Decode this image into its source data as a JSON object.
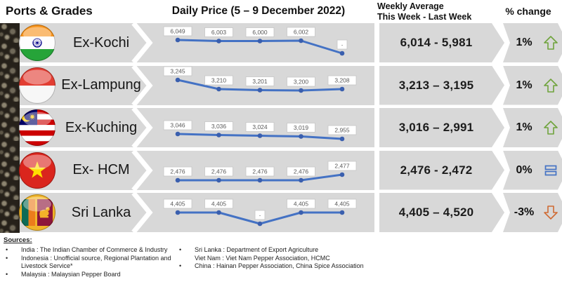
{
  "header": {
    "ports_grades": "Ports & Grades",
    "daily_price_title": "Daily Price (5 – 9 December 2022)",
    "weekly_avg_line1": "Weekly Average",
    "weekly_avg_line2": "This Week - Last Week",
    "pct_change": "% change"
  },
  "colors": {
    "band_gray": "#d8d8d8",
    "line_blue": "#4472c4",
    "trend_up_green": "#6fa33c",
    "trend_down_orange": "#cf6a33",
    "trend_equal_blue": "#4472c4"
  },
  "chart_data": [
    {
      "type": "line",
      "port": "Ex-Kochi",
      "flag": "india",
      "flag_name": "india-flag-icon",
      "values": [
        6049,
        6003,
        6000,
        6002,
        null
      ],
      "point_labels": [
        "6,049",
        "6,003",
        "6,000",
        "6,002",
        "-"
      ],
      "weekly_average": "6,014 - 5,981",
      "pct_change": "1%",
      "trend": "up",
      "plot_ys": [
        24,
        25.5,
        25.5,
        25,
        43
      ]
    },
    {
      "type": "line",
      "port": "Ex-Lampung",
      "flag": "indonesia",
      "flag_name": "indonesia-flag-icon",
      "values": [
        3245,
        3210,
        3201,
        3200,
        3208
      ],
      "point_labels": [
        "3,245",
        "3,210",
        "3,201",
        "3,200",
        "3,208"
      ],
      "weekly_average": "3,213 – 3,195",
      "pct_change": "1%",
      "trend": "up",
      "plot_ys": [
        20,
        33,
        34.5,
        35,
        33
      ]
    },
    {
      "type": "line",
      "port": "Ex-Kuching",
      "flag": "malaysia",
      "flag_name": "malaysia-flag-icon",
      "values": [
        3046,
        3036,
        3024,
        3019,
        2955
      ],
      "point_labels": [
        "3,046",
        "3,036",
        "3,024",
        "3,019",
        "2,955"
      ],
      "weekly_average": "3,016 – 2,991",
      "pct_change": "1%",
      "trend": "up",
      "plot_ys": [
        37,
        38.5,
        39.5,
        40.5,
        44
      ]
    },
    {
      "type": "line",
      "port": "Ex- HCM",
      "flag": "vietnam",
      "flag_name": "vietnam-flag-icon",
      "values": [
        2476,
        2476,
        2476,
        2476,
        2477
      ],
      "point_labels": [
        "2,476",
        "2,476",
        "2,476",
        "2,476",
        "2,477"
      ],
      "weekly_average": "2,476 - 2,472",
      "pct_change": "0%",
      "trend": "equal",
      "plot_ys": [
        42,
        42,
        42,
        42,
        34
      ]
    },
    {
      "type": "line",
      "port": "Sri Lanka",
      "flag": "sri-lanka",
      "flag_name": "sri-lanka-flag-icon",
      "values": [
        4405,
        4405,
        null,
        4405,
        4405
      ],
      "point_labels": [
        "4,405",
        "4,405",
        "-",
        "4,405",
        "4,405"
      ],
      "weekly_average": "4,405 – 4,520",
      "pct_change": "-3%",
      "trend": "down",
      "plot_ys": [
        28,
        28,
        44,
        28,
        28
      ]
    }
  ],
  "sources": {
    "title": "Sources:",
    "col1": [
      {
        "text": "India : The Indian Chamber of Commerce & Industry",
        "bullet": true
      },
      {
        "text": "Indonesia : Unofficial source, Regional Plantation and Livestock Service*",
        "bullet": true
      },
      {
        "text": "Malaysia : Malaysian Pepper Board",
        "bullet": true
      }
    ],
    "col2": [
      {
        "text": "Sri Lanka : Department of Export Agriculture",
        "bullet": true
      },
      {
        "text": "Viet Nam : Viet Nam Pepper Association, HCMC",
        "bullet": false
      },
      {
        "text": "China : Hainan Pepper Association, China Spice Association",
        "bullet": true
      }
    ]
  }
}
